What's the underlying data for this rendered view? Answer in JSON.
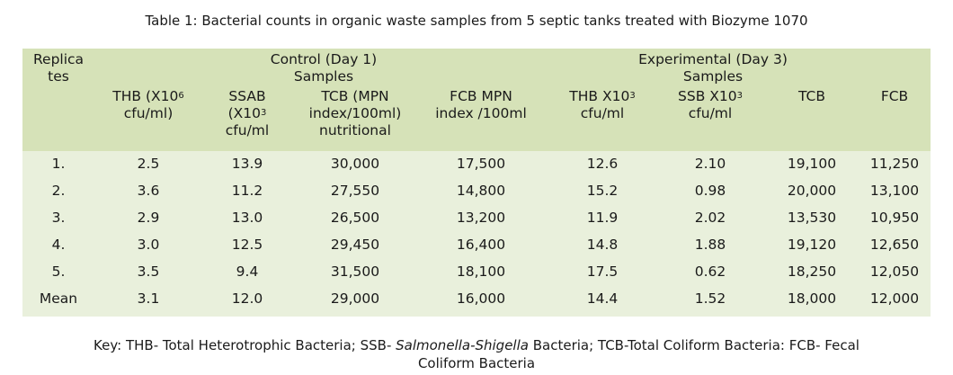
{
  "caption": "Table 1: Bacterial counts in organic waste samples from 5 septic tanks treated with Biozyme 1070",
  "header": {
    "replicates": [
      "Replica",
      "tes"
    ],
    "control_group": [
      "Control (Day 1)",
      "Samples"
    ],
    "experimental_group": [
      "Experimental (Day 3)",
      "Samples"
    ],
    "columns": [
      {
        "lines": [
          "THB (X10",
          "cfu/ml)"
        ],
        "sup": "6"
      },
      {
        "lines": [
          "SSAB",
          "(X10",
          "cfu/ml"
        ],
        "sup": "3"
      },
      {
        "lines": [
          "TCB (MPN",
          "index/100ml)",
          "nutritional"
        ],
        "sup": ""
      },
      {
        "lines": [
          "FCB MPN",
          "index /100ml"
        ],
        "sup": ""
      },
      {
        "lines": [
          "THB X10",
          "cfu/ml"
        ],
        "sup": "3"
      },
      {
        "lines": [
          "SSB X10",
          "cfu/ml"
        ],
        "sup": "3"
      },
      {
        "lines": [
          "TCB"
        ],
        "sup": ""
      },
      {
        "lines": [
          "FCB"
        ],
        "sup": ""
      }
    ]
  },
  "rows": [
    [
      "1.",
      "2.5",
      "13.9",
      "30,000",
      "17,500",
      "12.6",
      "2.10",
      "19,100",
      "11,250"
    ],
    [
      "2.",
      "3.6",
      "11.2",
      "27,550",
      "14,800",
      "15.2",
      "0.98",
      "20,000",
      "13,100"
    ],
    [
      "3.",
      "2.9",
      "13.0",
      "26,500",
      "13,200",
      "11.9",
      "2.02",
      "13,530",
      "10,950"
    ],
    [
      "4.",
      "3.0",
      "12.5",
      "29,450",
      "16,400",
      "14.8",
      "1.88",
      "19,120",
      "12,650"
    ],
    [
      "5.",
      "3.5",
      "9.4",
      "31,500",
      "18,100",
      "17.5",
      "0.62",
      "18,250",
      "12,050"
    ],
    [
      "Mean",
      "3.1",
      "12.0",
      "29,000",
      "16,000",
      "14.4",
      "1.52",
      "18,000",
      "12,000"
    ]
  ],
  "key": {
    "part1": "Key: THB- Total Heterotrophic Bacteria; SSB- ",
    "italic": "Salmonella-Shigella",
    "part2": " Bacteria; TCB-Total  Coliform Bacteria: FCB- Fecal",
    "line2": "Coliform Bacteria"
  },
  "colors": {
    "header_bg": "#d6e2b8",
    "body_bg": "#e9f0dc"
  }
}
